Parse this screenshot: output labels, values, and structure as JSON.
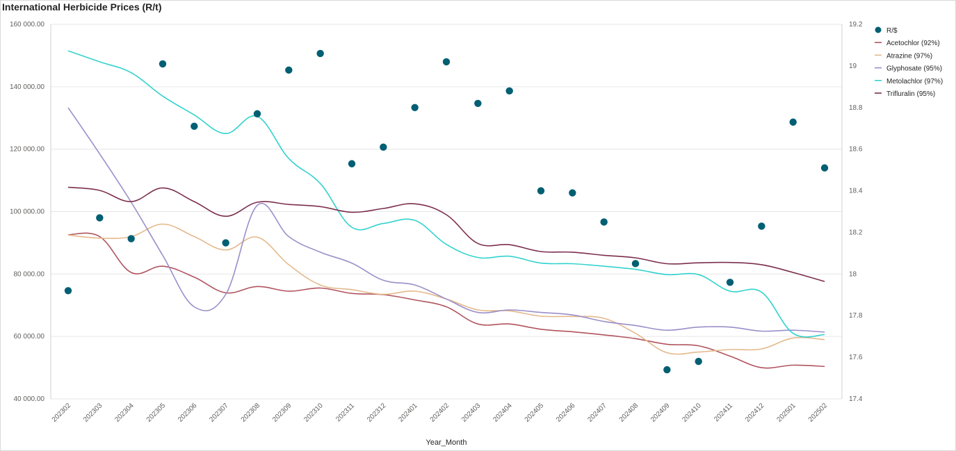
{
  "chart_data": {
    "type": "line",
    "title": "International Herbicide Prices (R/t)",
    "xlabel": "Year_Month",
    "ylabel": "",
    "y2label": "",
    "categories": [
      "202302",
      "202303",
      "202304",
      "202305",
      "202306",
      "202307",
      "202308",
      "202309",
      "202310",
      "202311",
      "202312",
      "202401",
      "202402",
      "202403",
      "202404",
      "202405",
      "202406",
      "202407",
      "202408",
      "202409",
      "202410",
      "202411",
      "202412",
      "202501",
      "202502"
    ],
    "ylim": [
      40000,
      160000
    ],
    "y2lim": [
      17.4,
      19.2
    ],
    "y_ticks": [
      "40 000.00",
      "60 000.00",
      "80 000.00",
      "100 000.00",
      "120 000.00",
      "140 000.00",
      "160 000.00"
    ],
    "y_tick_values": [
      40000,
      60000,
      80000,
      100000,
      120000,
      140000,
      160000
    ],
    "y2_ticks": [
      "17.4",
      "17.6",
      "17.8",
      "18",
      "18.2",
      "18.4",
      "18.6",
      "18.8",
      "19",
      "19.2"
    ],
    "y2_tick_values": [
      17.4,
      17.6,
      17.8,
      18.0,
      18.2,
      18.4,
      18.6,
      18.8,
      19.0,
      19.2
    ],
    "grid": true,
    "legend_position": "top-right",
    "series": [
      {
        "name": "R/$",
        "kind": "scatter",
        "axis": "right",
        "color": "#005f73",
        "values": [
          17.92,
          18.27,
          18.17,
          19.01,
          18.71,
          18.15,
          18.77,
          18.98,
          19.06,
          18.53,
          18.61,
          18.8,
          19.02,
          18.82,
          18.88,
          18.4,
          18.39,
          18.25,
          18.05,
          17.54,
          17.58,
          17.96,
          18.23,
          18.73,
          18.51
        ]
      },
      {
        "name": "Acetochlor (92%)",
        "kind": "line",
        "axis": "left",
        "color": "#b0545e",
        "values": [
          92600,
          92000,
          80500,
          82500,
          79000,
          74000,
          76000,
          74500,
          75500,
          73800,
          73400,
          71700,
          69500,
          64000,
          64000,
          62300,
          61500,
          60500,
          59300,
          57500,
          57000,
          53700,
          50000,
          50800,
          50400
        ]
      },
      {
        "name": "Atrazine (97%)",
        "kind": "line",
        "axis": "left",
        "color": "#e3b98c",
        "values": [
          92500,
          91500,
          92000,
          96000,
          92000,
          87700,
          91800,
          83000,
          76500,
          75000,
          73500,
          74500,
          72000,
          68500,
          68200,
          66500,
          66400,
          65800,
          61000,
          54800,
          55000,
          55800,
          56000,
          59500,
          59000
        ]
      },
      {
        "name": "Glyphosate (95%)",
        "kind": "line",
        "axis": "left",
        "color": "#9b8ec9",
        "values": [
          133300,
          118500,
          103000,
          86000,
          69500,
          73500,
          102000,
          92000,
          87000,
          83500,
          78000,
          76500,
          72000,
          67700,
          68500,
          67700,
          66900,
          64800,
          63500,
          62000,
          63000,
          63000,
          61700,
          62000,
          61400
        ]
      },
      {
        "name": "Metolachlor (97%)",
        "kind": "line",
        "axis": "left",
        "color": "#31d2ce",
        "values": [
          151500,
          148000,
          144500,
          137000,
          131000,
          125000,
          130500,
          117000,
          109000,
          95000,
          96200,
          97200,
          89500,
          85300,
          85700,
          83500,
          83300,
          82500,
          81500,
          79800,
          79800,
          74500,
          74200,
          61000,
          60600
        ]
      },
      {
        "name": "Trifluralin (95%)",
        "kind": "line",
        "axis": "left",
        "color": "#7b2e4d",
        "values": [
          107800,
          106800,
          103200,
          107600,
          103200,
          98500,
          103000,
          102300,
          101600,
          99800,
          101000,
          102500,
          99000,
          89800,
          89400,
          87200,
          87000,
          86000,
          85200,
          83300,
          83600,
          83700,
          83000,
          80500,
          77600
        ]
      }
    ]
  }
}
